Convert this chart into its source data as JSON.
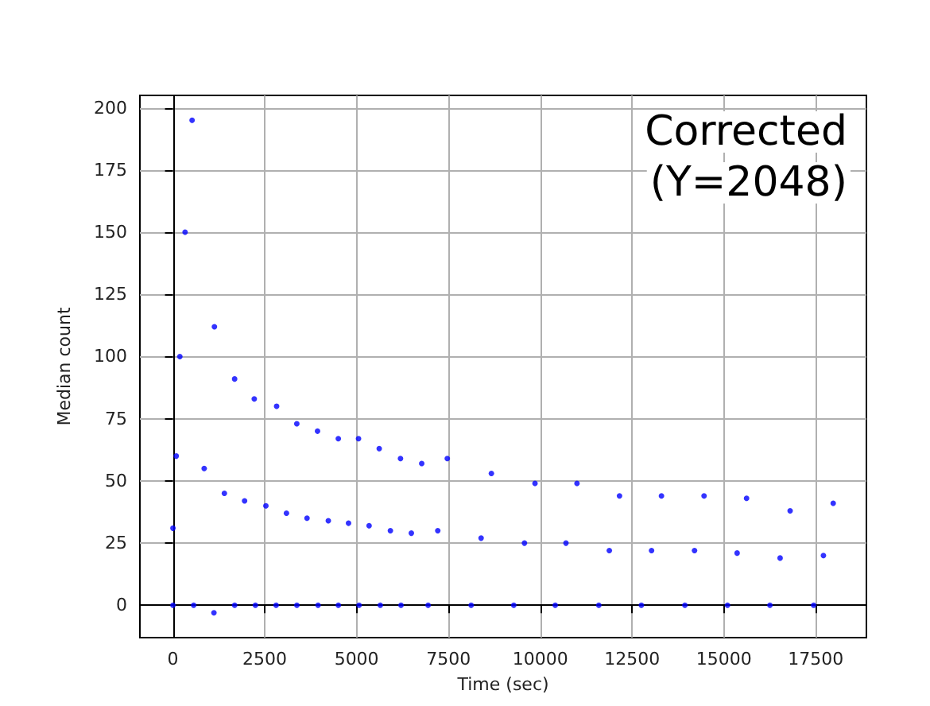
{
  "chart_data": {
    "type": "scatter",
    "xlabel": "Time (sec)",
    "ylabel": "Median count",
    "annotations": [
      "Corrected",
      "(Y=2048)"
    ],
    "x": [
      0,
      0,
      90,
      188,
      330,
      521,
      564,
      850,
      1129,
      1116,
      1400,
      1679,
      1680,
      1950,
      2214,
      2245,
      2530,
      2822,
      2809,
      3090,
      3372,
      3374,
      3650,
      3936,
      3951,
      4230,
      4502,
      4503,
      4780,
      5052,
      5067,
      5340,
      5616,
      5645,
      5920,
      6195,
      6209,
      6490,
      6773,
      6947,
      7210,
      7469,
      8119,
      8390,
      8670,
      9279,
      9570,
      9857,
      10408,
      10700,
      11000,
      11594,
      11880,
      12158,
      12753,
      13030,
      13300,
      13938,
      14200,
      14460,
      15098,
      15360,
      15617,
      16253,
      16530,
      16803,
      17443,
      17710,
      17976
    ],
    "values": [
      0,
      31,
      60,
      100,
      150,
      195,
      0,
      55,
      112,
      -3,
      45,
      91,
      0,
      42,
      83,
      0,
      40,
      80,
      0,
      37,
      73,
      0,
      35,
      70,
      0,
      34,
      67,
      0,
      33,
      67,
      0,
      32,
      63,
      0,
      30,
      59,
      0,
      29,
      57,
      0,
      30,
      59,
      0,
      27,
      53,
      0,
      25,
      49,
      0,
      25,
      49,
      0,
      22,
      44,
      0,
      22,
      44,
      0,
      22,
      44,
      0,
      21,
      43,
      0,
      19,
      38,
      0,
      20,
      41
    ],
    "color": "#0000ff",
    "marker": "circle",
    "grid": true,
    "xlim": [
      -900,
      18880
    ],
    "ylim": [
      -13,
      205
    ],
    "xticks": [
      0,
      2500,
      5000,
      7500,
      10000,
      12500,
      15000,
      17500
    ],
    "yticks": [
      0,
      25,
      50,
      75,
      100,
      125,
      150,
      175,
      200
    ]
  }
}
